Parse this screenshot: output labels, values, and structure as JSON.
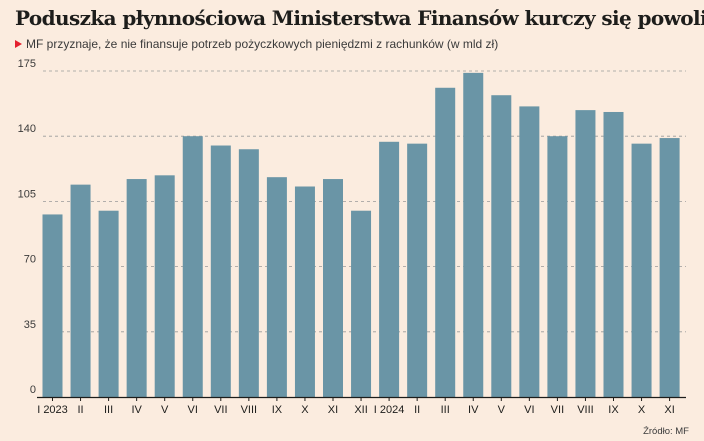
{
  "header": {
    "title": "Poduszka płynnościowa Ministerstwa Finansów kurczy się powoli",
    "subtitle": "MF przyznaje, że nie finansuje potrzeb pożyczkowych pieniędzmi z rachunków (w mld zł)"
  },
  "footer": {
    "source": "Źródło: MF"
  },
  "colors": {
    "bar": "#6a95a6",
    "background": "#fbecdf",
    "accent": "#e4202e",
    "grid": "#9a9a9a"
  },
  "chart_data": {
    "type": "bar",
    "title": "Poduszka płynnościowa Ministerstwa Finansów kurczy się powoli",
    "subtitle": "MF przyznaje, że nie finansuje potrzeb pożyczkowych pieniędzmi z rachunków (w mld zł)",
    "categories": [
      "I 2023",
      "II",
      "III",
      "IV",
      "V",
      "VI",
      "VII",
      "VIII",
      "IX",
      "X",
      "XI",
      "XII",
      "I 2024",
      "II",
      "III",
      "IV",
      "V",
      "VI",
      "VII",
      "VIII",
      "IX",
      "X",
      "XI"
    ],
    "values": [
      98,
      114,
      100,
      117,
      119,
      140,
      135,
      133,
      118,
      113,
      117,
      100,
      137,
      136,
      166,
      174,
      162,
      156,
      140,
      154,
      153,
      136,
      139
    ],
    "yticks": [
      0,
      35,
      70,
      105,
      140,
      175
    ],
    "ylim": [
      0,
      175
    ],
    "grid": true,
    "grid_style": "dashed horizontal",
    "legend": false
  }
}
